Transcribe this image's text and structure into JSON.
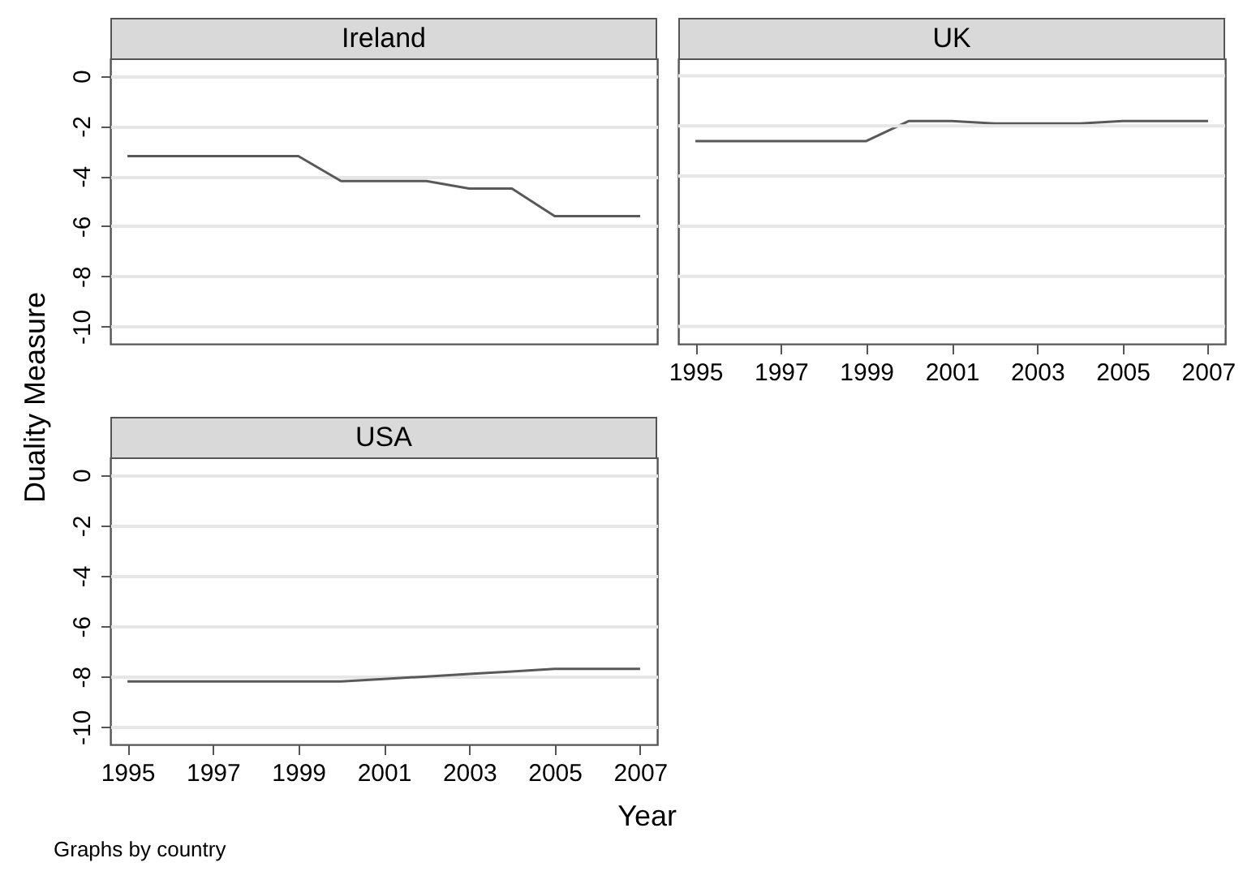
{
  "chart_data": [
    {
      "type": "line",
      "title": "Ireland",
      "x": [
        1995,
        1996,
        1997,
        1998,
        1999,
        2000,
        2001,
        2002,
        2003,
        2004,
        2005,
        2006,
        2007
      ],
      "series": [
        {
          "color": "#595959",
          "values": [
            -3.2,
            -3.2,
            -3.2,
            -3.2,
            -3.2,
            -4.2,
            -4.2,
            -4.2,
            -4.5,
            -4.5,
            -5.6,
            -5.6,
            -5.6
          ]
        }
      ],
      "xlim": [
        1994.6,
        2007.4
      ],
      "xticks": [
        1995,
        1997,
        1999,
        2001,
        2003,
        2005,
        2007
      ],
      "ylim": [
        -10.7,
        0.7
      ],
      "yticks": [
        -10,
        -8,
        -6,
        -4,
        -2,
        0
      ],
      "grid": "y",
      "tick_labels": "y"
    },
    {
      "type": "line",
      "title": "UK",
      "x": [
        1995,
        1996,
        1997,
        1998,
        1999,
        2000,
        2001,
        2002,
        2003,
        2004,
        2005,
        2006,
        2007
      ],
      "series": [
        {
          "color": "#595959",
          "values": [
            -2.6,
            -2.6,
            -2.6,
            -2.6,
            -2.6,
            -1.8,
            -1.8,
            -1.9,
            -1.9,
            -1.9,
            -1.8,
            -1.8,
            -1.8
          ]
        }
      ],
      "xlim": [
        1994.6,
        2007.4
      ],
      "xticks": [
        1995,
        1997,
        1999,
        2001,
        2003,
        2005,
        2007
      ],
      "ylim": [
        -10.7,
        0.7
      ],
      "yticks": [
        -10,
        -8,
        -6,
        -4,
        -2,
        0
      ],
      "grid": "y",
      "tick_labels": "x"
    },
    {
      "type": "line",
      "title": "USA",
      "xlabel": "Year",
      "ylabel": "Duality Measure",
      "annotations": [
        "Graphs by country"
      ],
      "x": [
        1995,
        1996,
        1997,
        1998,
        1999,
        2000,
        2001,
        2002,
        2003,
        2004,
        2005,
        2006,
        2007
      ],
      "series": [
        {
          "color": "#595959",
          "values": [
            -8.2,
            -8.2,
            -8.2,
            -8.2,
            -8.2,
            -8.2,
            -8.1,
            -8.0,
            -7.9,
            -7.8,
            -7.7,
            -7.7,
            -7.7
          ]
        }
      ],
      "xlim": [
        1994.6,
        2007.4
      ],
      "xticks": [
        1995,
        1997,
        1999,
        2001,
        2003,
        2005,
        2007
      ],
      "ylim": [
        -10.7,
        0.7
      ],
      "yticks": [
        -10,
        -8,
        -6,
        -4,
        -2,
        0
      ],
      "grid": "y"
    }
  ]
}
